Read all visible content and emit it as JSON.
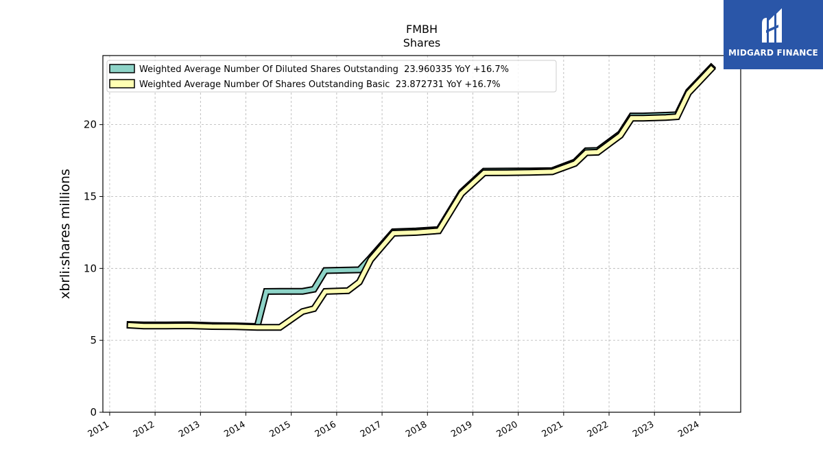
{
  "chart_data": {
    "type": "area",
    "title": "FMBH",
    "subtitle": "Shares",
    "xlabel": "",
    "ylabel": "xbrli:shares millions",
    "xlim": [
      2010.85,
      2024.9
    ],
    "ylim": [
      0,
      24.8
    ],
    "x_ticks": [
      "2011",
      "2012",
      "2013",
      "2014",
      "2015",
      "2016",
      "2017",
      "2018",
      "2019",
      "2020",
      "2021",
      "2022",
      "2023",
      "2024"
    ],
    "y_ticks": [
      "0",
      "5",
      "10",
      "15",
      "20"
    ],
    "grid": true,
    "legend_position": "top-left",
    "series": [
      {
        "name": "Weighted Average Number Of Diluted Shares Outstanding  23.960335 YoY +16.7%",
        "color": "#8dd3c7",
        "x": [
          2011.45,
          2011.75,
          2012.25,
          2012.75,
          2013.25,
          2013.75,
          2014.25,
          2014.45,
          2014.75,
          2015.25,
          2015.5,
          2015.75,
          2016.25,
          2016.5,
          2016.75,
          2017.25,
          2017.75,
          2018.25,
          2018.75,
          2019.25,
          2019.75,
          2020.25,
          2020.75,
          2021.25,
          2021.5,
          2021.75,
          2022.25,
          2022.5,
          2022.75,
          2023.25,
          2023.5,
          2023.75,
          2024.25
        ],
        "values": [
          6.1,
          6.07,
          6.07,
          6.08,
          6.03,
          6.01,
          5.96,
          8.4,
          8.41,
          8.41,
          8.55,
          9.85,
          9.88,
          9.9,
          10.75,
          12.55,
          12.6,
          12.7,
          15.3,
          16.76,
          16.77,
          16.78,
          16.8,
          17.4,
          18.18,
          18.2,
          19.37,
          20.6,
          20.6,
          20.65,
          20.68,
          22.3,
          23.96
        ]
      },
      {
        "name": "Weighted Average Number Of Shares Outstanding Basic  23.872731 YoY +16.7%",
        "color": "#ffffb3",
        "x": [
          2011.45,
          2011.75,
          2012.25,
          2012.75,
          2013.25,
          2013.75,
          2014.25,
          2014.5,
          2014.75,
          2015.25,
          2015.5,
          2015.75,
          2016.25,
          2016.5,
          2016.75,
          2017.25,
          2017.75,
          2018.25,
          2018.75,
          2019.25,
          2019.75,
          2020.25,
          2020.75,
          2021.25,
          2021.5,
          2021.75,
          2022.25,
          2022.5,
          2022.75,
          2023.25,
          2023.5,
          2023.75,
          2024.25
        ],
        "values": [
          6.05,
          6.0,
          6.0,
          6.01,
          5.96,
          5.95,
          5.9,
          5.9,
          5.9,
          7.0,
          7.2,
          8.4,
          8.45,
          9.05,
          10.6,
          12.45,
          12.5,
          12.62,
          15.2,
          16.65,
          16.66,
          16.68,
          16.72,
          17.3,
          18.05,
          18.08,
          19.25,
          20.45,
          20.45,
          20.5,
          20.55,
          22.2,
          23.87
        ]
      }
    ]
  },
  "logo": {
    "text": "MIDGARD FINANCE"
  }
}
